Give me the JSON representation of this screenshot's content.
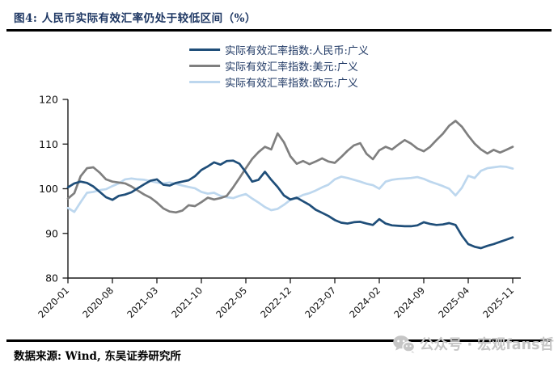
{
  "title": "图4:  人民币实际有效汇率仍处于较低区间（%）",
  "legend": [
    {
      "id": "rmb",
      "label": "实际有效汇率指数:人民币:广义",
      "color": "#1f4e79"
    },
    {
      "id": "usd",
      "label": "实际有效汇率指数:美元:广义",
      "color": "#7f7f7f"
    },
    {
      "id": "eur",
      "label": "实际有效汇率指数:欧元:广义",
      "color": "#bdd7ee"
    }
  ],
  "footer": {
    "source": "数据来源: Wind, 东吴证券研究所"
  },
  "watermark": {
    "icon": "wechat-icon",
    "text": "公众号 · 宏观fans哲"
  },
  "chart_data": {
    "type": "line",
    "title": "图4: 人民币实际有效汇率仍处于较低区间（%）",
    "x": {
      "start": "2020-01",
      "end": "2025-11",
      "frequency": "monthly"
    },
    "n_points": 71,
    "ylim": [
      80,
      120
    ],
    "yticks": [
      80,
      90,
      100,
      110,
      120
    ],
    "grid": false,
    "legend_position": "top",
    "x_ticks": [
      {
        "label": "2020-01",
        "month_index": 0
      },
      {
        "label": "2020-08",
        "month_index": 7
      },
      {
        "label": "2021-03",
        "month_index": 14
      },
      {
        "label": "2021-10",
        "month_index": 21
      },
      {
        "label": "2022-05",
        "month_index": 28
      },
      {
        "label": "2022-12",
        "month_index": 35
      },
      {
        "label": "2023-07",
        "month_index": 42
      },
      {
        "label": "2024-02",
        "month_index": 49
      },
      {
        "label": "2024-09",
        "month_index": 56
      },
      {
        "label": "2025-04",
        "month_index": 63
      },
      {
        "label": "2025-11",
        "month_index": 70
      }
    ],
    "series": [
      {
        "id": "rmb",
        "name": "实际有效汇率指数:人民币:广义",
        "color": "#1f4e79",
        "values": [
          100.3,
          101.2,
          101.6,
          101.3,
          100.5,
          99.3,
          98.1,
          97.5,
          98.4,
          98.7,
          99.2,
          100.1,
          101.0,
          101.8,
          102.1,
          100.9,
          100.7,
          101.3,
          101.6,
          101.9,
          102.8,
          104.2,
          105.0,
          105.9,
          105.4,
          106.2,
          106.3,
          105.6,
          103.7,
          101.6,
          102.0,
          103.8,
          102.0,
          100.4,
          98.5,
          97.6,
          98.0,
          97.2,
          96.4,
          95.3,
          94.6,
          93.9,
          93.0,
          92.4,
          92.2,
          92.5,
          92.6,
          92.2,
          91.9,
          93.2,
          92.2,
          91.8,
          91.7,
          91.6,
          91.6,
          91.8,
          92.5,
          92.1,
          91.9,
          92.0,
          92.3,
          91.9,
          89.5,
          87.6,
          87.0,
          86.7,
          87.2,
          87.6,
          88.1,
          88.6,
          89.1
        ]
      },
      {
        "id": "usd",
        "name": "实际有效汇率指数:美元:广义",
        "color": "#7f7f7f",
        "values": [
          97.8,
          99.0,
          102.8,
          104.6,
          104.8,
          103.6,
          102.1,
          101.6,
          101.4,
          101.2,
          100.5,
          99.6,
          98.7,
          98.0,
          96.9,
          95.6,
          94.9,
          94.7,
          95.1,
          96.3,
          96.1,
          97.0,
          98.0,
          97.6,
          97.9,
          98.4,
          100.3,
          102.4,
          104.6,
          106.7,
          108.2,
          109.4,
          108.8,
          112.4,
          110.4,
          107.3,
          105.6,
          106.2,
          105.5,
          106.1,
          106.8,
          106.1,
          105.8,
          107.1,
          108.5,
          109.7,
          110.2,
          107.8,
          106.6,
          108.6,
          109.4,
          108.8,
          109.9,
          110.9,
          110.1,
          109.0,
          108.4,
          109.4,
          110.9,
          112.3,
          114.1,
          115.2,
          113.9,
          111.9,
          110.1,
          108.8,
          107.9,
          108.7,
          108.1,
          108.7,
          109.4
        ]
      },
      {
        "id": "eur",
        "name": "实际有效汇率指数:欧元:广义",
        "color": "#bdd7ee",
        "values": [
          95.7,
          94.8,
          97.0,
          99.1,
          99.3,
          99.7,
          99.9,
          100.6,
          101.2,
          102.1,
          102.3,
          102.1,
          102.0,
          101.7,
          101.4,
          101.2,
          101.4,
          101.1,
          100.7,
          100.4,
          100.1,
          99.3,
          98.9,
          99.1,
          98.4,
          98.1,
          97.9,
          98.4,
          98.8,
          97.8,
          96.9,
          95.9,
          95.2,
          95.5,
          96.4,
          97.5,
          97.9,
          98.6,
          99.0,
          99.6,
          100.3,
          100.9,
          102.1,
          102.7,
          102.4,
          102.0,
          101.6,
          101.1,
          100.8,
          100.0,
          101.6,
          102.0,
          102.2,
          102.3,
          102.4,
          102.6,
          102.2,
          101.6,
          101.1,
          100.6,
          100.0,
          98.5,
          100.2,
          102.9,
          102.4,
          104.0,
          104.6,
          104.8,
          105.0,
          104.9,
          104.5
        ]
      }
    ]
  }
}
